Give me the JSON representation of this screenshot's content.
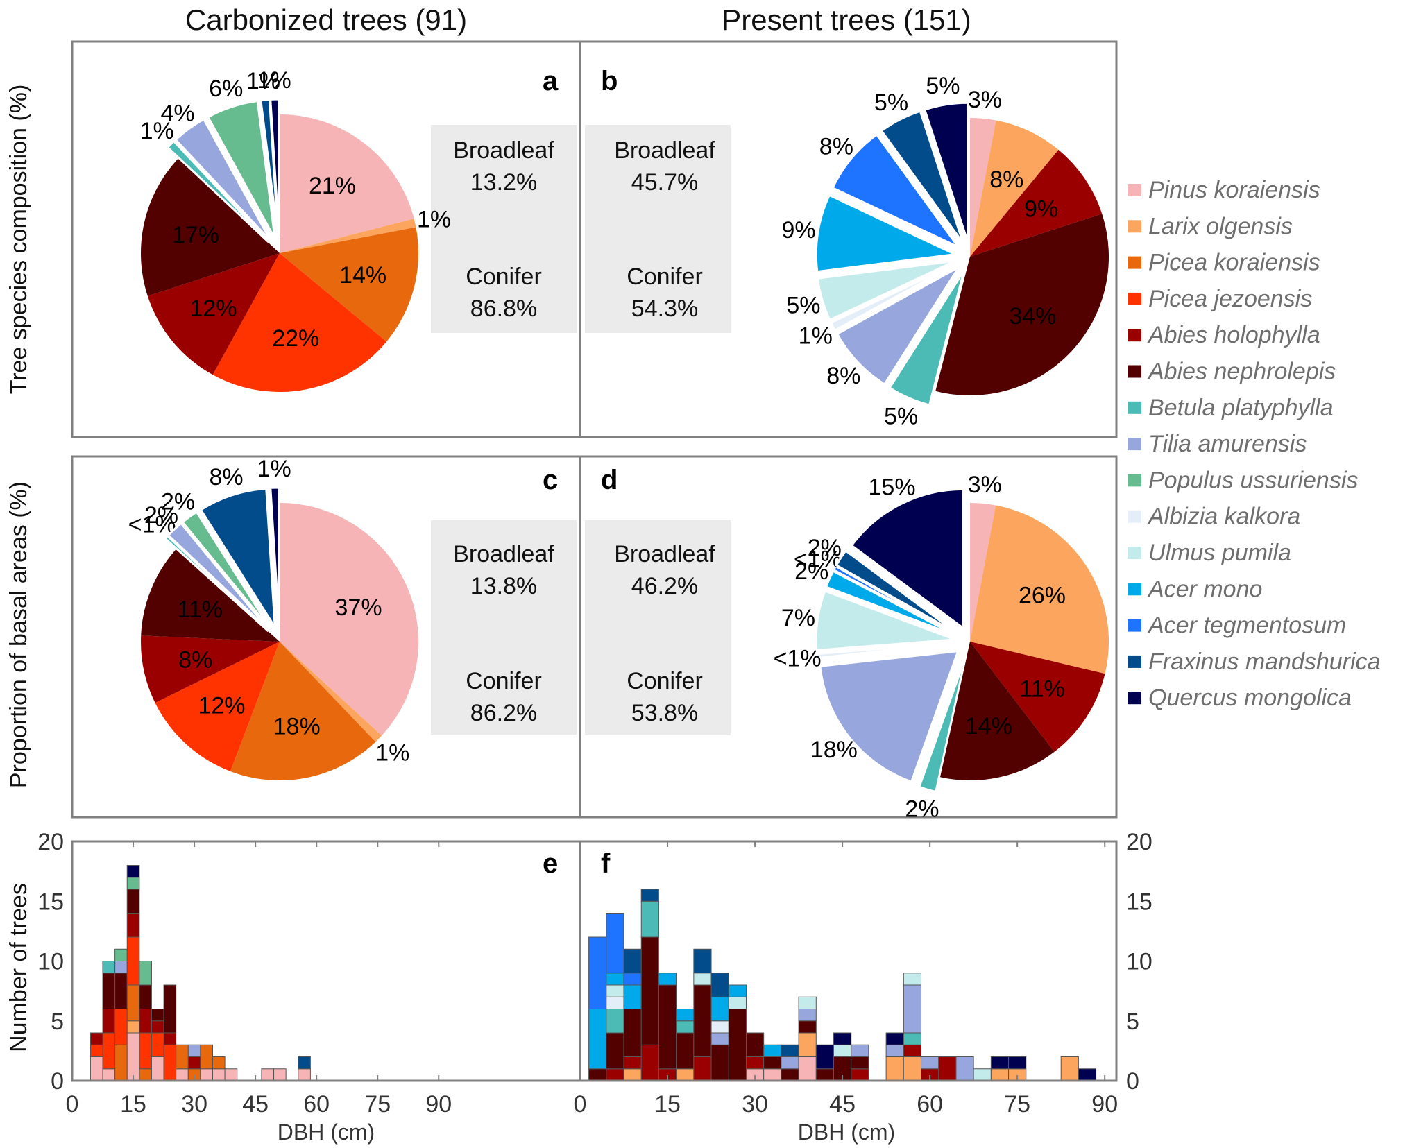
{
  "titles": {
    "left": "Carbonized trees (91)",
    "right": "Present trees (151)"
  },
  "ylabels": {
    "row1": "Tree species composition (%)",
    "row2": "Proportion of basal areas (%)",
    "row3": "Number of trees"
  },
  "species": [
    {
      "name": "Pinus koraiensis",
      "color": "#F7B4B6"
    },
    {
      "name": "Larix olgensis",
      "color": "#FCA55E"
    },
    {
      "name": "Picea koraiensis",
      "color": "#E8680E"
    },
    {
      "name": "Picea jezoensis",
      "color": "#FF3300"
    },
    {
      "name": "Abies holophylla",
      "color": "#9B0000"
    },
    {
      "name": "Abies nephrolepis",
      "color": "#520000"
    },
    {
      "name": "Betula platyphylla",
      "color": "#4DBBB5"
    },
    {
      "name": "Tilia amurensis",
      "color": "#97A6DD"
    },
    {
      "name": "Populus ussuriensis",
      "color": "#66BB8F"
    },
    {
      "name": "Albizia kalkora",
      "color": "#E4EEF8"
    },
    {
      "name": "Ulmus pumila",
      "color": "#C4EBEC"
    },
    {
      "name": "Acer mono",
      "color": "#00AAEA"
    },
    {
      "name": "Acer tegmentosum",
      "color": "#1F74FF"
    },
    {
      "name": "Fraxinus mandshurica",
      "color": "#024C8C"
    },
    {
      "name": "Quercus mongolica",
      "color": "#000050"
    }
  ],
  "chart_data": [
    {
      "panel": "a",
      "type": "pie",
      "title": "Carbonized trees (91)",
      "ylabel": "Tree species composition (%)",
      "values": [
        21,
        1,
        14,
        22,
        12,
        17,
        1,
        4,
        6,
        0,
        0,
        0,
        0,
        1,
        1
      ],
      "labels": [
        "21%",
        "1%",
        "14%",
        "22%",
        "12%",
        "17%",
        "1%",
        "4%",
        "6%",
        "",
        "",
        "",
        "",
        "1%",
        "1%"
      ],
      "summary": {
        "broadleaf_label": "Broadleaf",
        "broadleaf": "13.2%",
        "conifer_label": "Conifer",
        "conifer": "86.8%"
      }
    },
    {
      "panel": "b",
      "type": "pie",
      "title": "Present trees (151)",
      "ylabel": "Tree species composition (%)",
      "values": [
        3,
        8,
        0,
        0,
        9,
        34,
        5,
        8,
        0,
        1,
        5,
        9,
        8,
        5,
        5
      ],
      "labels": [
        "3%",
        "8%",
        "",
        "",
        "9%",
        "34%",
        "5%",
        "8%",
        "",
        "1%",
        "5%",
        "9%",
        "8%",
        "5%",
        "5%"
      ],
      "summary": {
        "broadleaf_label": "Broadleaf",
        "broadleaf": "45.7%",
        "conifer_label": "Conifer",
        "conifer": "54.3%"
      }
    },
    {
      "panel": "c",
      "type": "pie",
      "title": "Carbonized trees (91)",
      "ylabel": "Proportion of basal areas (%)",
      "values": [
        37,
        1,
        18,
        12,
        8,
        11,
        0.4,
        2,
        2,
        0,
        0,
        0,
        0,
        8,
        1
      ],
      "labels": [
        "37%",
        "1%",
        "18%",
        "12%",
        "8%",
        "11%",
        "<1%",
        "2%",
        "2%",
        "",
        "",
        "",
        "",
        "8%",
        "1%"
      ],
      "summary": {
        "broadleaf_label": "Broadleaf",
        "broadleaf": "13.8%",
        "conifer_label": "Conifer",
        "conifer": "86.2%"
      }
    },
    {
      "panel": "d",
      "type": "pie",
      "title": "Present trees (151)",
      "ylabel": "Proportion of basal areas (%)",
      "values": [
        3,
        26,
        0,
        0,
        11,
        14,
        2,
        18,
        0,
        0.5,
        7,
        2,
        0.5,
        2,
        15
      ],
      "labels": [
        "3%",
        "26%",
        "",
        "",
        "11%",
        "14%",
        "2%",
        "18%",
        "",
        "<1%",
        "7%",
        "2%",
        "<1%",
        "2%",
        "15%"
      ],
      "summary": {
        "broadleaf_label": "Broadleaf",
        "broadleaf": "46.2%",
        "conifer_label": "Conifer",
        "conifer": "53.8%"
      }
    },
    {
      "panel": "e",
      "type": "bar",
      "stacked": true,
      "xlabel": "DBH (cm)",
      "ylabel": "Number of trees",
      "xlim": [
        0,
        92
      ],
      "ylim": [
        0,
        20
      ],
      "xticks": [
        "0",
        "15",
        "30",
        "45",
        "60",
        "75",
        "90"
      ],
      "yticks": [
        "0",
        "5",
        "10",
        "15",
        "20"
      ],
      "bin_width": 3,
      "bins": [
        {
          "start": 4.5,
          "counts": {
            "Pinus koraiensis": 2,
            "Picea jezoensis": 1,
            "Abies holophylla": 1
          }
        },
        {
          "start": 7.5,
          "counts": {
            "Pinus koraiensis": 1,
            "Picea jezoensis": 3,
            "Abies holophylla": 2,
            "Abies nephrolepis": 3,
            "Betula platyphylla": 1
          }
        },
        {
          "start": 10.5,
          "counts": {
            "Picea koraiensis": 3,
            "Picea jezoensis": 3,
            "Abies nephrolepis": 3,
            "Tilia amurensis": 1,
            "Populus ussuriensis": 1
          }
        },
        {
          "start": 13.5,
          "counts": {
            "Pinus koraiensis": 4,
            "Larix olgensis": 1,
            "Picea koraiensis": 3,
            "Picea jezoensis": 4,
            "Abies holophylla": 2,
            "Abies nephrolepis": 2,
            "Populus ussuriensis": 1,
            "Quercus mongolica": 1
          }
        },
        {
          "start": 16.5,
          "counts": {
            "Picea koraiensis": 1,
            "Picea jezoensis": 3,
            "Abies holophylla": 2,
            "Abies nephrolepis": 2,
            "Populus ussuriensis": 2
          }
        },
        {
          "start": 19.5,
          "counts": {
            "Pinus koraiensis": 2,
            "Picea jezoensis": 2,
            "Abies holophylla": 1,
            "Abies nephrolepis": 1
          }
        },
        {
          "start": 22.5,
          "counts": {
            "Picea jezoensis": 3,
            "Abies holophylla": 1,
            "Abies nephrolepis": 4
          }
        },
        {
          "start": 25.5,
          "counts": {
            "Pinus koraiensis": 1,
            "Picea koraiensis": 2
          }
        },
        {
          "start": 28.5,
          "counts": {
            "Picea koraiensis": 1,
            "Abies holophylla": 1,
            "Tilia amurensis": 1
          }
        },
        {
          "start": 31.5,
          "counts": {
            "Pinus koraiensis": 1,
            "Picea koraiensis": 2
          }
        },
        {
          "start": 34.5,
          "counts": {
            "Pinus koraiensis": 1,
            "Picea koraiensis": 1
          }
        },
        {
          "start": 37.5,
          "counts": {
            "Pinus koraiensis": 1
          }
        },
        {
          "start": 46.5,
          "counts": {
            "Pinus koraiensis": 1
          }
        },
        {
          "start": 49.5,
          "counts": {
            "Pinus koraiensis": 1
          }
        },
        {
          "start": 55.5,
          "counts": {
            "Pinus koraiensis": 1,
            "Fraxinus mandshurica": 1
          }
        }
      ]
    },
    {
      "panel": "f",
      "type": "bar",
      "stacked": true,
      "xlabel": "DBH (cm)",
      "ylabel": "Number of trees",
      "xlim": [
        0,
        92
      ],
      "ylim": [
        0,
        20
      ],
      "xticks": [
        "0",
        "15",
        "30",
        "45",
        "60",
        "75",
        "90"
      ],
      "yticks": [
        "0",
        "5",
        "10",
        "15",
        "20"
      ],
      "bin_width": 3,
      "bins": [
        {
          "start": 1.5,
          "counts": {
            "Abies nephrolepis": 1,
            "Acer mono": 5,
            "Acer tegmentosum": 6
          }
        },
        {
          "start": 4.5,
          "counts": {
            "Abies holophylla": 1,
            "Abies nephrolepis": 3,
            "Betula platyphylla": 2,
            "Albizia kalkora": 1,
            "Ulmus pumila": 1,
            "Acer mono": 1,
            "Acer tegmentosum": 5
          }
        },
        {
          "start": 7.5,
          "counts": {
            "Larix olgensis": 1,
            "Abies holophylla": 1,
            "Abies nephrolepis": 4,
            "Acer mono": 2,
            "Acer tegmentosum": 1,
            "Fraxinus mandshurica": 2
          }
        },
        {
          "start": 10.5,
          "counts": {
            "Abies holophylla": 3,
            "Abies nephrolepis": 9,
            "Betula platyphylla": 3,
            "Fraxinus mandshurica": 1
          }
        },
        {
          "start": 13.5,
          "counts": {
            "Abies holophylla": 1,
            "Abies nephrolepis": 7,
            "Acer mono": 1
          }
        },
        {
          "start": 16.5,
          "counts": {
            "Larix olgensis": 1,
            "Abies nephrolepis": 3,
            "Betula platyphylla": 1,
            "Acer mono": 1
          }
        },
        {
          "start": 19.5,
          "counts": {
            "Abies holophylla": 2,
            "Abies nephrolepis": 6,
            "Ulmus pumila": 1,
            "Fraxinus mandshurica": 2
          }
        },
        {
          "start": 22.5,
          "counts": {
            "Abies nephrolepis": 3,
            "Tilia amurensis": 1,
            "Albizia kalkora": 1,
            "Acer mono": 2,
            "Fraxinus mandshurica": 2
          }
        },
        {
          "start": 25.5,
          "counts": {
            "Abies nephrolepis": 6,
            "Ulmus pumila": 1,
            "Acer mono": 1
          }
        },
        {
          "start": 28.5,
          "counts": {
            "Pinus koraiensis": 1,
            "Abies holophylla": 1,
            "Abies nephrolepis": 2
          }
        },
        {
          "start": 31.5,
          "counts": {
            "Pinus koraiensis": 1,
            "Abies nephrolepis": 1,
            "Acer mono": 1
          }
        },
        {
          "start": 34.5,
          "counts": {
            "Abies nephrolepis": 1,
            "Tilia amurensis": 1,
            "Fraxinus mandshurica": 1
          }
        },
        {
          "start": 37.5,
          "counts": {
            "Pinus koraiensis": 2,
            "Larix olgensis": 2,
            "Abies nephrolepis": 1,
            "Tilia amurensis": 1,
            "Ulmus pumila": 1
          }
        },
        {
          "start": 40.5,
          "counts": {
            "Abies nephrolepis": 1,
            "Quercus mongolica": 2
          }
        },
        {
          "start": 43.5,
          "counts": {
            "Abies nephrolepis": 2,
            "Ulmus pumila": 1,
            "Quercus mongolica": 1
          }
        },
        {
          "start": 46.5,
          "counts": {
            "Abies holophylla": 1,
            "Abies nephrolepis": 1,
            "Tilia amurensis": 1
          }
        },
        {
          "start": 52.5,
          "counts": {
            "Larix olgensis": 2,
            "Tilia amurensis": 1,
            "Quercus mongolica": 1
          }
        },
        {
          "start": 55.5,
          "counts": {
            "Larix olgensis": 2,
            "Abies holophylla": 1,
            "Betula platyphylla": 1,
            "Tilia amurensis": 4,
            "Ulmus pumila": 1
          }
        },
        {
          "start": 58.5,
          "counts": {
            "Abies holophylla": 1,
            "Tilia amurensis": 1
          }
        },
        {
          "start": 61.5,
          "counts": {
            "Abies holophylla": 2
          }
        },
        {
          "start": 64.5,
          "counts": {
            "Tilia amurensis": 2
          }
        },
        {
          "start": 67.5,
          "counts": {
            "Ulmus pumila": 1
          }
        },
        {
          "start": 70.5,
          "counts": {
            "Larix olgensis": 1,
            "Quercus mongolica": 1
          }
        },
        {
          "start": 73.5,
          "counts": {
            "Larix olgensis": 1,
            "Quercus mongolica": 1
          }
        },
        {
          "start": 82.5,
          "counts": {
            "Larix olgensis": 2
          }
        },
        {
          "start": 85.5,
          "counts": {
            "Quercus mongolica": 1
          }
        }
      ]
    }
  ]
}
